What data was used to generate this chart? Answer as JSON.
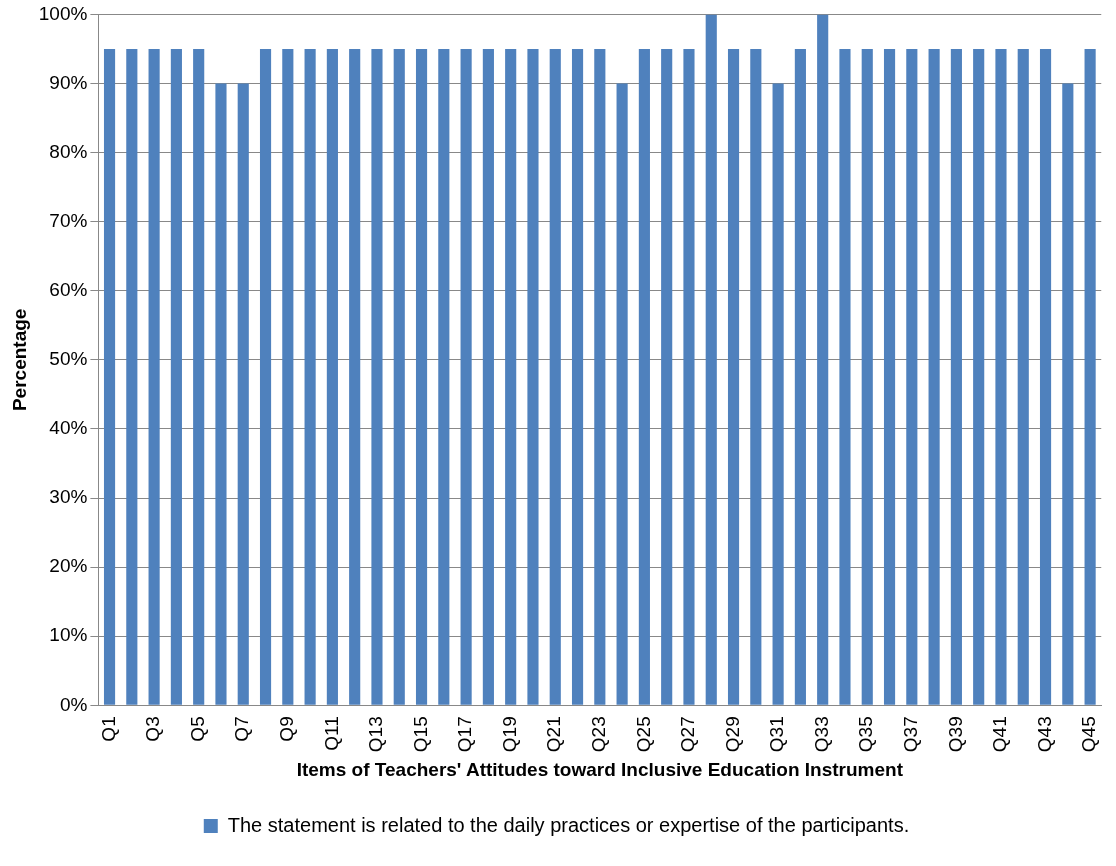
{
  "chart_data": {
    "type": "bar",
    "xlabel": "Items of Teachers' Attitudes toward Inclusive Education Instrument",
    "ylabel": "Percentage",
    "categories": [
      "Q1",
      null,
      "Q3",
      null,
      "Q5",
      null,
      "Q7",
      null,
      "Q9",
      null,
      "Q11",
      null,
      "Q13",
      null,
      "Q15",
      null,
      "Q17",
      null,
      "Q19",
      null,
      "Q21",
      null,
      "Q23",
      null,
      "Q25",
      null,
      "Q27",
      null,
      "Q29",
      null,
      "Q31",
      null,
      "Q33",
      null,
      "Q35",
      null,
      "Q37",
      null,
      "Q39",
      null,
      "Q41",
      null,
      "Q43",
      null,
      "Q45"
    ],
    "series": [
      {
        "name": "The statement is related to the daily practices or expertise of the participants.",
        "color": "#4f81bd",
        "values": [
          95,
          95,
          95,
          95,
          95,
          90,
          90,
          95,
          95,
          95,
          95,
          95,
          95,
          95,
          95,
          95,
          95,
          95,
          95,
          95,
          95,
          95,
          95,
          90,
          95,
          95,
          95,
          100,
          95,
          95,
          90,
          95,
          100,
          95,
          95,
          95,
          95,
          95,
          95,
          95,
          95,
          95,
          95,
          90,
          95
        ]
      }
    ],
    "ylim": [
      0,
      100
    ],
    "yticks": [
      {
        "value": 0,
        "label": "0%"
      },
      {
        "value": 10,
        "label": "10%"
      },
      {
        "value": 20,
        "label": "20%"
      },
      {
        "value": 30,
        "label": "30%"
      },
      {
        "value": 40,
        "label": "40%"
      },
      {
        "value": 50,
        "label": "50%"
      },
      {
        "value": 60,
        "label": "60%"
      },
      {
        "value": 70,
        "label": "70%"
      },
      {
        "value": 80,
        "label": "80%"
      },
      {
        "value": 90,
        "label": "90%"
      },
      {
        "value": 100,
        "label": "100%"
      }
    ],
    "grid": "y",
    "legend": "bottom"
  }
}
